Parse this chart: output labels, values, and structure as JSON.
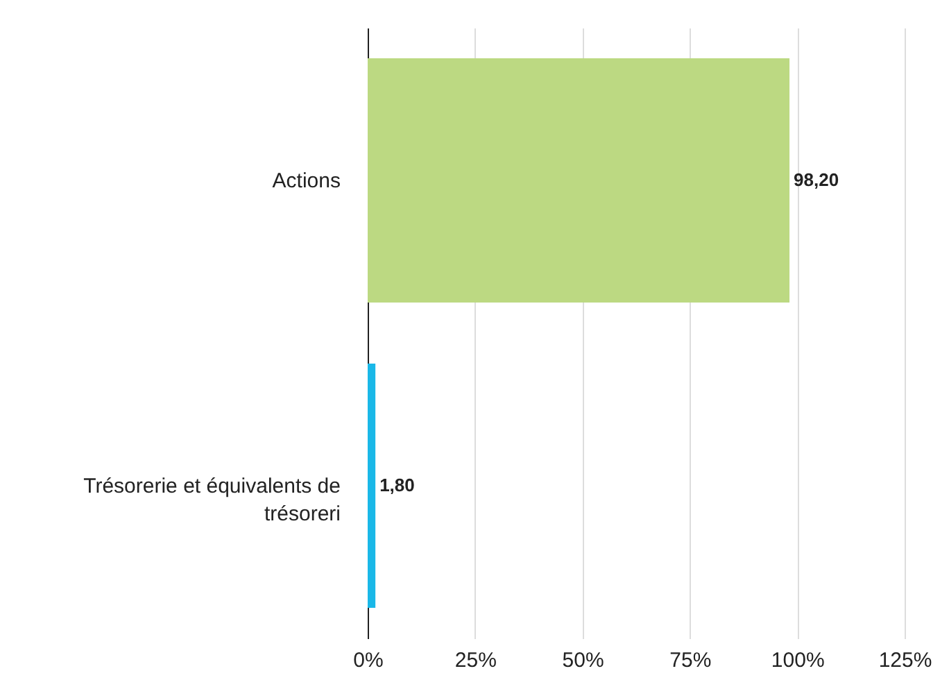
{
  "chart_data": {
    "type": "bar",
    "orientation": "horizontal",
    "categories": [
      "Actions",
      "Trésorerie et équivalents de trésoreri"
    ],
    "values": [
      98.2,
      1.8
    ],
    "colors": [
      "#bcd982",
      "#1ab8e8"
    ],
    "value_labels": [
      "98,20",
      "1,80"
    ],
    "xlim": [
      0,
      125
    ],
    "xticks": [
      {
        "value": 0,
        "label": "0%"
      },
      {
        "value": 25,
        "label": "25%"
      },
      {
        "value": 50,
        "label": "50%"
      },
      {
        "value": 75,
        "label": "75%"
      },
      {
        "value": 100,
        "label": "100%"
      },
      {
        "value": 125,
        "label": "125%"
      }
    ],
    "grid": "x"
  }
}
